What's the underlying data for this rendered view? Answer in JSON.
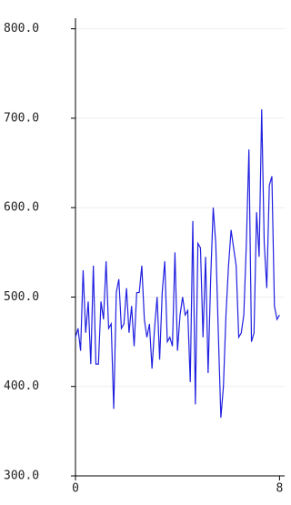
{
  "chart_data": {
    "type": "line",
    "x": [
      0,
      0.1,
      0.2,
      0.3,
      0.4,
      0.5,
      0.6,
      0.7,
      0.8,
      0.9,
      1,
      1.1,
      1.2,
      1.3,
      1.4,
      1.5,
      1.6,
      1.7,
      1.8,
      1.9,
      2,
      2.1,
      2.2,
      2.3,
      2.4,
      2.5,
      2.6,
      2.7,
      2.8,
      2.9,
      3,
      3.1,
      3.2,
      3.3,
      3.4,
      3.5,
      3.6,
      3.7,
      3.8,
      3.9,
      4,
      4.1,
      4.2,
      4.3,
      4.4,
      4.5,
      4.6,
      4.7,
      4.8,
      4.9,
      5,
      5.1,
      5.2,
      5.3,
      5.4,
      5.5,
      5.6,
      5.7,
      5.8,
      5.9,
      6,
      6.1,
      6.2,
      6.3,
      6.4,
      6.5,
      6.6,
      6.7,
      6.8,
      6.9,
      7,
      7.1,
      7.2,
      7.3,
      7.4,
      7.5,
      7.6,
      7.7,
      7.8,
      7.9,
      8
    ],
    "series": [
      {
        "color": "#2020e0",
        "values": [
          455,
          465,
          440,
          530,
          460,
          495,
          425,
          535,
          425,
          425,
          495,
          475,
          540,
          465,
          470,
          375,
          505,
          520,
          465,
          470,
          510,
          460,
          490,
          445,
          505,
          505,
          535,
          475,
          455,
          470,
          420,
          465,
          500,
          430,
          505,
          540,
          450,
          455,
          445,
          550,
          440,
          480,
          500,
          480,
          485,
          405,
          585,
          380,
          560,
          555,
          455,
          545,
          415,
          520,
          600,
          560,
          460,
          365,
          400,
          480,
          535,
          575,
          555,
          535,
          455,
          460,
          480,
          560,
          665,
          450,
          460,
          595,
          545,
          710,
          560,
          510,
          625,
          635,
          490,
          475,
          480
        ]
      }
    ],
    "xlim": [
      0,
      8.2
    ],
    "xticks": [
      0,
      8
    ],
    "ylim": [
      300,
      820
    ],
    "yticks": [
      {
        "value": 300,
        "label": "300.0"
      },
      {
        "value": 400,
        "label": "400.0"
      },
      {
        "value": 500,
        "label": "500.0"
      },
      {
        "value": 600,
        "label": "600.0"
      },
      {
        "value": 700,
        "label": "700.0"
      },
      {
        "value": 800,
        "label": "800.0"
      }
    ],
    "grid": true
  }
}
